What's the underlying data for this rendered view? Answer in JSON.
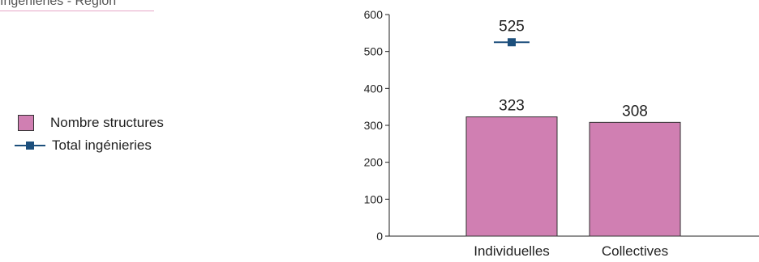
{
  "header": {
    "title": "Ingénieries - Région"
  },
  "colors": {
    "bar": "#d07fb2",
    "line": "#1c4f7c",
    "axis": "#222222"
  },
  "chart_data": {
    "type": "bar",
    "title": "Ingénieries - Région",
    "xlabel": "",
    "ylabel": "",
    "categories": [
      "Individuelles",
      "Collectives"
    ],
    "ylim": [
      0,
      600
    ],
    "yticks": [
      0,
      100,
      200,
      300,
      400,
      500,
      600
    ],
    "grid": false,
    "legend_position": "left",
    "series": [
      {
        "name": "Nombre structures",
        "kind": "bar",
        "values": [
          323,
          308
        ]
      },
      {
        "name": "Total ingénieries",
        "kind": "line",
        "values": [
          525,
          null
        ]
      }
    ]
  }
}
